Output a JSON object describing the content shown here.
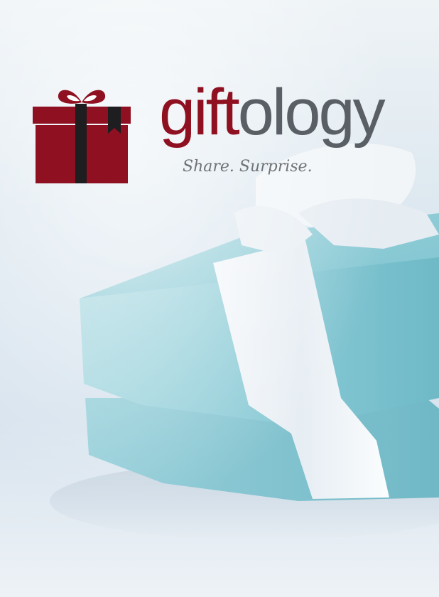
{
  "brand": {
    "name_accent": "gift",
    "name_rest": "ology",
    "tagline": "Share. Surprise.",
    "colors": {
      "accent": "#8f1020",
      "text": "#5a5f66",
      "logo_ribbon": "#1e1d1f"
    }
  },
  "scene": {
    "subject": "gift-box-with-ribbon",
    "colors": {
      "box": "#7fc6d2",
      "ribbon": "#eef3f7",
      "background": "#e5edf3"
    }
  }
}
